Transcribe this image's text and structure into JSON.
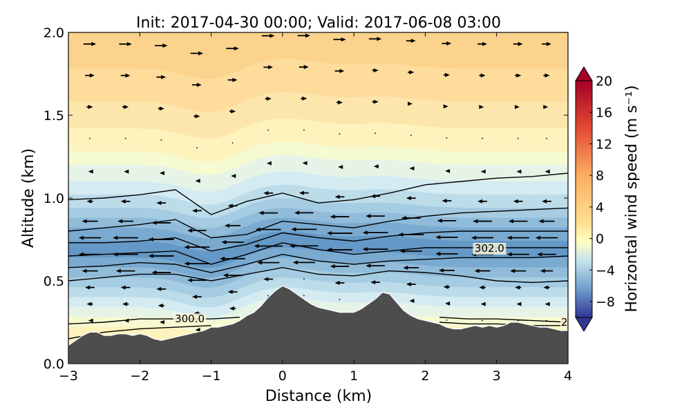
{
  "chart_data": {
    "type": "cross-section",
    "title": "Init: 2017-04-30 00:00; Valid: 2017-06-08 03:00",
    "xlabel": "Distance (km)",
    "ylabel": "Altitude (km)",
    "xlim": [
      -3,
      4
    ],
    "ylim": [
      0.0,
      2.0
    ],
    "x_ticks": [
      "−3",
      "−2",
      "−1",
      "0",
      "1",
      "2",
      "3",
      "4"
    ],
    "x_tick_values": [
      -3,
      -2,
      -1,
      0,
      1,
      2,
      3,
      4
    ],
    "y_ticks": [
      "0.0",
      "0.5",
      "1.0",
      "1.5",
      "2.0"
    ],
    "y_tick_values": [
      0.0,
      0.5,
      1.0,
      1.5,
      2.0
    ],
    "colorbar": {
      "label": "Horizontal wind speed (m s⁻¹)",
      "range": [
        -10,
        20
      ],
      "ticks": [
        "20",
        "16",
        "12",
        "8",
        "4",
        "0",
        "−4",
        "−8"
      ],
      "tick_values": [
        20,
        16,
        12,
        8,
        4,
        0,
        -4,
        -8
      ],
      "extend": "both"
    },
    "terrain": {
      "color": "#4d4d4d",
      "x": [
        -3.0,
        -2.9,
        -2.8,
        -2.7,
        -2.6,
        -2.5,
        -2.4,
        -2.3,
        -2.2,
        -2.1,
        -2.0,
        -1.9,
        -1.8,
        -1.7,
        -1.6,
        -1.5,
        -1.4,
        -1.3,
        -1.2,
        -1.1,
        -1.0,
        -0.9,
        -0.8,
        -0.7,
        -0.6,
        -0.5,
        -0.4,
        -0.3,
        -0.2,
        -0.1,
        0.0,
        0.1,
        0.2,
        0.3,
        0.4,
        0.5,
        0.6,
        0.7,
        0.8,
        0.9,
        1.0,
        1.1,
        1.2,
        1.3,
        1.4,
        1.5,
        1.6,
        1.7,
        1.8,
        1.9,
        2.0,
        2.1,
        2.2,
        2.3,
        2.4,
        2.5,
        2.6,
        2.7,
        2.8,
        2.9,
        3.0,
        3.1,
        3.2,
        3.3,
        3.4,
        3.5,
        3.6,
        3.7,
        3.8,
        3.9,
        4.0
      ],
      "altitude": [
        0.11,
        0.14,
        0.17,
        0.19,
        0.19,
        0.17,
        0.17,
        0.18,
        0.18,
        0.17,
        0.18,
        0.17,
        0.15,
        0.14,
        0.15,
        0.16,
        0.17,
        0.18,
        0.19,
        0.2,
        0.22,
        0.22,
        0.23,
        0.24,
        0.26,
        0.29,
        0.31,
        0.35,
        0.4,
        0.44,
        0.47,
        0.45,
        0.42,
        0.39,
        0.36,
        0.34,
        0.33,
        0.32,
        0.31,
        0.31,
        0.31,
        0.33,
        0.36,
        0.39,
        0.43,
        0.42,
        0.37,
        0.32,
        0.29,
        0.27,
        0.26,
        0.25,
        0.24,
        0.22,
        0.21,
        0.21,
        0.22,
        0.23,
        0.22,
        0.23,
        0.22,
        0.23,
        0.25,
        0.25,
        0.24,
        0.23,
        0.22,
        0.22,
        0.21,
        0.2,
        0.2
      ]
    },
    "wind_speed_bands": [
      {
        "altitude_top": 2.0,
        "value": 4,
        "color": "#fbd38d"
      },
      {
        "altitude_top": 1.78,
        "value": 3,
        "color": "#fddc9c"
      },
      {
        "altitude_top": 1.58,
        "value": 2,
        "color": "#fde6ac"
      },
      {
        "altitude_top": 1.42,
        "value": 1,
        "color": "#fef2bd"
      },
      {
        "altitude_top": 1.28,
        "value": 0,
        "color": "#f6fad0"
      },
      {
        "altitude_top": 1.2,
        "value": -1,
        "color": "#e6f4e8"
      },
      {
        "altitude_top": 1.1,
        "value": -2,
        "color": "#d3ebf1"
      },
      {
        "altitude_top": 1.02,
        "value": -3,
        "color": "#bcdcea"
      },
      {
        "altitude_top": 0.94,
        "value": -4,
        "color": "#a5cce2"
      },
      {
        "altitude_top": 0.88,
        "value": -5,
        "color": "#90bcd9"
      },
      {
        "altitude_top": 0.82,
        "value": -6,
        "color": "#7aaad0"
      },
      {
        "altitude_top": 0.74,
        "value": -7,
        "color": "#6498c6"
      },
      {
        "altitude_top": 0.64,
        "value": -6,
        "color": "#7aaad0"
      },
      {
        "altitude_top": 0.58,
        "value": -5,
        "color": "#90bcd9"
      },
      {
        "altitude_top": 0.52,
        "value": -4,
        "color": "#a5cce2"
      },
      {
        "altitude_top": 0.46,
        "value": -3,
        "color": "#bcdcea"
      },
      {
        "altitude_top": 0.4,
        "value": -2,
        "color": "#d3ebf1"
      },
      {
        "altitude_top": 0.34,
        "value": -1,
        "color": "#e6f4e8"
      },
      {
        "altitude_top": 0.28,
        "value": 0,
        "color": "#f6fad0"
      },
      {
        "altitude_top": 0.22,
        "value": 1,
        "color": "#fef2bd"
      }
    ],
    "theta_contours": [
      {
        "label": "",
        "x": [
          -3.0,
          -2.5,
          -2.0,
          -1.5,
          -1.0,
          -0.5,
          0.0,
          0.5,
          1.0,
          1.5,
          2.0,
          2.5,
          3.0,
          3.5,
          4.0
        ],
        "altitude": [
          0.99,
          1.0,
          1.02,
          1.05,
          0.9,
          0.98,
          1.03,
          0.97,
          0.99,
          1.03,
          1.08,
          1.1,
          1.12,
          1.13,
          1.15
        ]
      },
      {
        "label": "",
        "x": [
          -3.0,
          -2.5,
          -2.0,
          -1.5,
          -1.0,
          -0.5,
          0.0,
          0.5,
          1.0,
          1.5,
          2.0,
          2.5,
          3.0,
          3.5,
          4.0
        ],
        "altitude": [
          0.8,
          0.82,
          0.84,
          0.87,
          0.76,
          0.78,
          0.86,
          0.84,
          0.82,
          0.86,
          0.89,
          0.91,
          0.92,
          0.93,
          0.94
        ]
      },
      {
        "label": "",
        "x": [
          -3.0,
          -2.5,
          -2.0,
          -1.5,
          -1.0,
          -0.5,
          0.0,
          0.5,
          1.0,
          1.5,
          2.0,
          2.5,
          3.0,
          3.5,
          4.0
        ],
        "altitude": [
          0.73,
          0.73,
          0.74,
          0.76,
          0.68,
          0.72,
          0.79,
          0.76,
          0.74,
          0.77,
          0.79,
          0.8,
          0.8,
          0.8,
          0.8
        ]
      },
      {
        "label": "302.0",
        "x": [
          -3.0,
          -2.5,
          -2.0,
          -1.5,
          -1.0,
          -0.5,
          0.0,
          0.5,
          1.0,
          1.5,
          2.0,
          2.5,
          3.0,
          3.5,
          4.0
        ],
        "altitude": [
          0.65,
          0.66,
          0.67,
          0.68,
          0.6,
          0.66,
          0.73,
          0.69,
          0.66,
          0.68,
          0.7,
          0.7,
          0.7,
          0.7,
          0.7
        ]
      },
      {
        "label": "",
        "x": [
          -3.0,
          -2.5,
          -2.0,
          -1.5,
          -1.0,
          -0.5,
          0.0,
          0.5,
          1.0,
          1.5,
          2.0,
          2.5,
          3.0,
          3.5,
          4.0
        ],
        "altitude": [
          0.58,
          0.59,
          0.61,
          0.6,
          0.55,
          0.6,
          0.66,
          0.62,
          0.6,
          0.62,
          0.63,
          0.64,
          0.64,
          0.64,
          0.65
        ]
      },
      {
        "label": "",
        "x": [
          -3.0,
          -2.5,
          -2.0,
          -1.5,
          -1.0,
          -0.5,
          0.0,
          0.5,
          1.0,
          1.5,
          2.0,
          2.5,
          3.0,
          3.5,
          4.0
        ],
        "altitude": [
          0.5,
          0.52,
          0.54,
          0.54,
          0.5,
          0.54,
          0.58,
          0.54,
          0.53,
          0.56,
          0.55,
          0.53,
          0.5,
          0.49,
          0.5
        ]
      },
      {
        "label": "300.0",
        "x": [
          -3.0,
          -2.5,
          -2.0,
          -1.5,
          -1.0,
          -0.6
        ],
        "altitude": [
          0.24,
          0.25,
          0.27,
          0.27,
          0.27,
          0.28
        ]
      },
      {
        "label": "",
        "x": [
          -3.0,
          -2.5,
          -2.0,
          -1.5,
          -1.0
        ],
        "altitude": [
          0.15,
          0.19,
          0.21,
          0.22,
          0.23
        ]
      },
      {
        "label": "2",
        "x": [
          2.2,
          2.6,
          3.0,
          3.5,
          4.0
        ],
        "altitude": [
          0.28,
          0.27,
          0.27,
          0.26,
          0.25
        ]
      },
      {
        "label": "",
        "x": [
          2.2,
          2.6,
          3.0,
          3.5,
          4.0
        ],
        "altitude": [
          0.25,
          0.24,
          0.24,
          0.23,
          0.23
        ]
      }
    ],
    "wind_vectors": {
      "x": [
        -2.7,
        -2.2,
        -1.7,
        -1.2,
        -0.7,
        -0.2,
        0.3,
        0.8,
        1.3,
        1.8,
        2.3,
        2.8,
        3.3,
        3.7
      ],
      "rows": [
        {
          "altitude": 1.93,
          "u": [
            4,
            4,
            4,
            4,
            4,
            4,
            4,
            4,
            4,
            3,
            3,
            3,
            3,
            3
          ]
        },
        {
          "altitude": 1.74,
          "u": [
            3,
            3,
            3,
            3,
            3,
            3,
            3,
            3,
            2,
            2,
            2,
            2,
            2,
            2
          ]
        },
        {
          "altitude": 1.55,
          "u": [
            2,
            2,
            2,
            2,
            2,
            2,
            2,
            2,
            2,
            1,
            1,
            1,
            1,
            1
          ]
        },
        {
          "altitude": 1.36,
          "u": [
            0,
            0,
            0,
            0,
            0,
            0,
            0,
            0,
            0,
            0,
            0,
            0,
            0,
            0
          ]
        },
        {
          "altitude": 1.16,
          "u": [
            -1,
            -1,
            -1,
            -1,
            -1,
            -1,
            -1,
            -1,
            -1,
            -1,
            -1,
            -1,
            -1,
            -1
          ]
        },
        {
          "altitude": 0.98,
          "u": [
            -2,
            -3,
            -3,
            -3,
            -3,
            -3,
            -3,
            -3,
            -3,
            -3,
            -3,
            -3,
            -3,
            -3
          ]
        },
        {
          "altitude": 0.86,
          "u": [
            -5,
            -5,
            -6,
            -6,
            -5,
            -6,
            -6,
            -6,
            -6,
            -6,
            -6,
            -6,
            -6,
            -5
          ]
        },
        {
          "altitude": 0.76,
          "u": [
            -7,
            -8,
            -8,
            -8,
            -7,
            -8,
            -8,
            -8,
            -8,
            -8,
            -7,
            -7,
            -7,
            -7
          ]
        },
        {
          "altitude": 0.66,
          "u": [
            -7,
            -8,
            -8,
            -8,
            -8,
            -9,
            -9,
            -8,
            -8,
            -7,
            -7,
            -7,
            -7,
            -6
          ]
        },
        {
          "altitude": 0.56,
          "u": [
            -5,
            -6,
            -6,
            -6,
            -6,
            -7,
            -7,
            -6,
            -6,
            -5,
            -5,
            -5,
            -5,
            -4
          ]
        },
        {
          "altitude": 0.46,
          "u": [
            -3,
            -3,
            -3,
            -3,
            -3,
            -3,
            0,
            -3,
            -3,
            -3,
            -2,
            -2,
            -2,
            -2
          ]
        },
        {
          "altitude": 0.36,
          "u": [
            -2,
            -2,
            -2,
            -2,
            -2,
            0,
            0,
            0,
            0,
            -1,
            -1,
            -1,
            -1,
            -1
          ]
        },
        {
          "altitude": 0.26,
          "u": [
            -1,
            -1,
            -1,
            -1,
            0,
            0,
            0,
            0,
            0,
            0,
            0,
            0,
            0,
            0
          ]
        }
      ]
    }
  }
}
